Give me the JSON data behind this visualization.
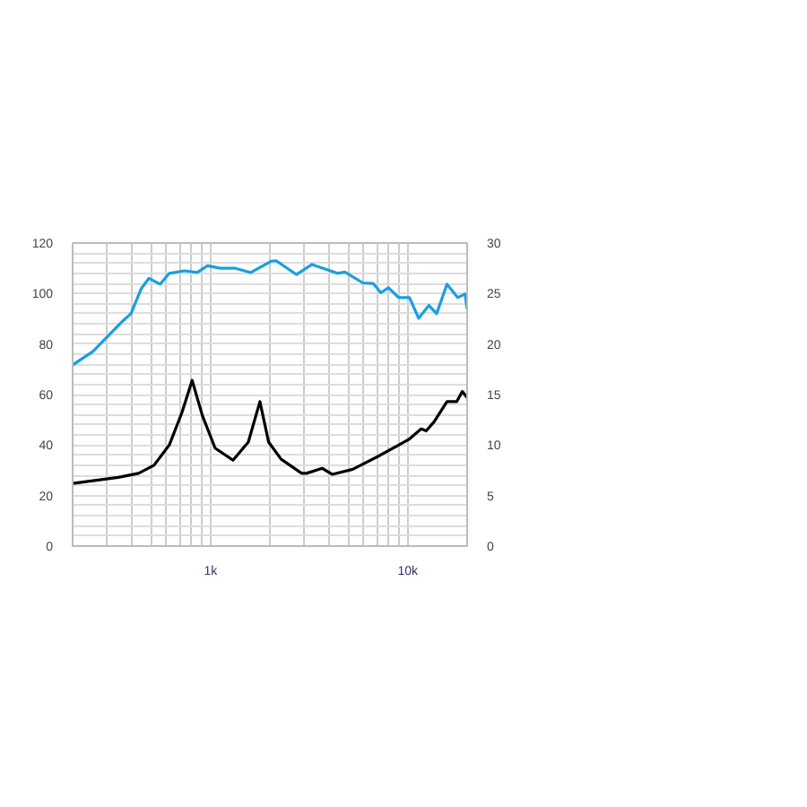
{
  "chart_data": {
    "type": "line",
    "log": "x",
    "grid": true,
    "marker": "none",
    "line_style": "solid",
    "xlim": [
      200,
      20000
    ],
    "xticks": [
      {
        "value": 200,
        "label": null
      },
      {
        "value": 300,
        "label": null
      },
      {
        "value": 400,
        "label": null
      },
      {
        "value": 500,
        "label": null
      },
      {
        "value": 600,
        "label": null
      },
      {
        "value": 700,
        "label": null
      },
      {
        "value": 800,
        "label": null
      },
      {
        "value": 900,
        "label": null
      },
      {
        "value": 1000,
        "label": "1k"
      },
      {
        "value": 2000,
        "label": null
      },
      {
        "value": 3000,
        "label": null
      },
      {
        "value": 4000,
        "label": null
      },
      {
        "value": 5000,
        "label": null
      },
      {
        "value": 6000,
        "label": null
      },
      {
        "value": 7000,
        "label": null
      },
      {
        "value": 8000,
        "label": null
      },
      {
        "value": 9000,
        "label": null
      },
      {
        "value": 10000,
        "label": "10k"
      },
      {
        "value": 20000,
        "label": null
      }
    ],
    "ylim": [
      0,
      120
    ],
    "yticks": [
      0,
      {
        "value": 4,
        "label": null
      },
      {
        "value": 8,
        "label": null
      },
      {
        "value": 12,
        "label": null
      },
      {
        "value": 16,
        "label": null
      },
      20,
      {
        "value": 24,
        "label": null
      },
      {
        "value": 28,
        "label": null
      },
      {
        "value": 32,
        "label": null
      },
      {
        "value": 36,
        "label": null
      },
      40,
      {
        "value": 44,
        "label": null
      },
      {
        "value": 48,
        "label": null
      },
      {
        "value": 52,
        "label": null
      },
      {
        "value": 56,
        "label": null
      },
      60,
      {
        "value": 64,
        "label": null
      },
      {
        "value": 68,
        "label": null
      },
      {
        "value": 72,
        "label": null
      },
      {
        "value": 76,
        "label": null
      },
      80,
      {
        "value": 84,
        "label": null
      },
      {
        "value": 88,
        "label": null
      },
      {
        "value": 92,
        "label": null
      },
      {
        "value": 96,
        "label": null
      },
      100,
      {
        "value": 104,
        "label": null
      },
      {
        "value": 108,
        "label": null
      },
      {
        "value": 112,
        "label": null
      },
      {
        "value": 116,
        "label": null
      },
      120
    ],
    "y2lim": [
      0,
      30
    ],
    "y2ticks": [
      0,
      5,
      10,
      15,
      20,
      25,
      30
    ],
    "series": [
      {
        "color": "#1a9fe0",
        "x": [
          200,
          253,
          362,
          395,
          446,
          487,
          555,
          618,
          738,
          856,
          965,
          1119,
          1338,
          1600,
          2030,
          2150,
          2730,
          3270,
          4400,
          4800,
          5920,
          6680,
          7300,
          7980,
          8990,
          10200,
          11350,
          12800,
          14000,
          15800,
          17900,
          19500,
          20000
        ],
        "values": [
          71.7,
          77,
          89.4,
          92,
          102,
          106,
          103.7,
          108,
          109,
          108.3,
          111,
          110,
          110,
          108.3,
          112.8,
          113,
          107.5,
          111.5,
          108,
          108.5,
          104.2,
          104,
          100.3,
          102.3,
          98.4,
          98.4,
          90.2,
          95.3,
          92,
          103.7,
          98.4,
          99.8,
          93.8
        ]
      },
      {
        "color": "#000000",
        "axis": "y2",
        "x": [
          200,
          341,
          432,
          517,
          618,
          716,
          807,
          910,
          1055,
          1300,
          1555,
          1780,
          1970,
          2280,
          2900,
          3070,
          3680,
          4150,
          5260,
          7100,
          8990,
          10200,
          11700,
          12400,
          13600,
          15800,
          17700,
          18900,
          20000
        ],
        "values": [
          6.2,
          6.8,
          7.2,
          8,
          10,
          13.2,
          16.4,
          12.9,
          9.7,
          8.5,
          10.3,
          14.3,
          10.3,
          8.6,
          7.2,
          7.2,
          7.7,
          7.1,
          7.6,
          8.9,
          10,
          10.6,
          11.6,
          11.4,
          12.3,
          14.3,
          14.3,
          15.3,
          14.7
        ]
      }
    ]
  }
}
